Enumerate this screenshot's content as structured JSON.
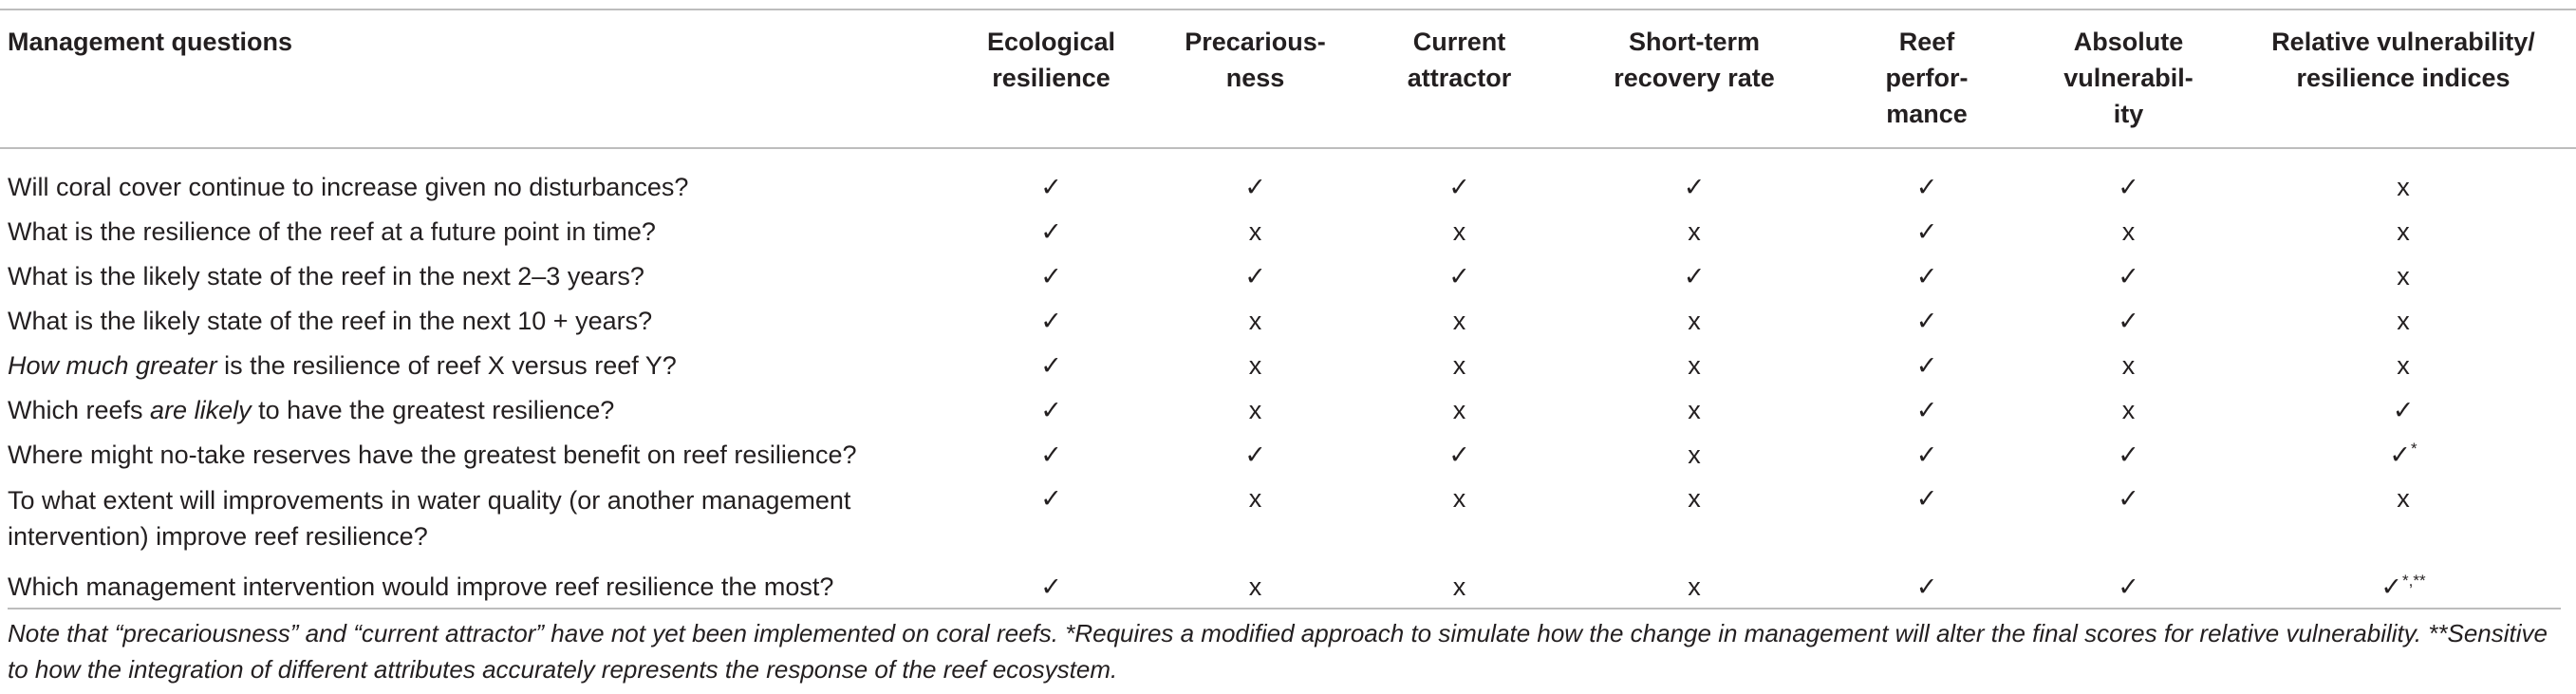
{
  "table": {
    "headers": [
      "Management questions",
      "Ecological resilience",
      "Precarious-ness",
      "Current attractor",
      "Short-term recovery rate",
      "Reef perfor-mance",
      "Absolute vulnerabil-ity",
      "Relative vulnerability/ resilience indices"
    ],
    "header_lines": [
      [
        "Management questions"
      ],
      [
        "Ecological",
        "resilience"
      ],
      [
        "Precarious-",
        "ness"
      ],
      [
        "Current",
        "attractor"
      ],
      [
        "Short-term",
        "recovery rate"
      ],
      [
        "Reef",
        "perfor-",
        "mance"
      ],
      [
        "Absolute",
        "vulnerabil-",
        "ity"
      ],
      [
        "Relative vulnerability/",
        "resilience indices"
      ]
    ],
    "rows": [
      {
        "question": "Will coral cover continue to increase given no disturbances?",
        "cells": [
          "✓",
          "✓",
          "✓",
          "✓",
          "✓",
          "✓",
          "x"
        ]
      },
      {
        "question": "What is the resilience of the reef at a future point in time?",
        "cells": [
          "✓",
          "x",
          "x",
          "x",
          "✓",
          "x",
          "x"
        ]
      },
      {
        "question": "What is the likely state of the reef in the next 2–3 years?",
        "cells": [
          "✓",
          "✓",
          "✓",
          "✓",
          "✓",
          "✓",
          "x"
        ]
      },
      {
        "question": "What is the likely state of the reef in the next 10 + years?",
        "cells": [
          "✓",
          "x",
          "x",
          "x",
          "✓",
          "✓",
          "x"
        ]
      },
      {
        "question_italic": "How much greater",
        "question": " is the resilience of reef X versus reef Y?",
        "cells": [
          "✓",
          "x",
          "x",
          "x",
          "✓",
          "x",
          "x"
        ]
      },
      {
        "question_pre": "Which reefs ",
        "question_italic": "are likely",
        "question": " to have the greatest resilience?",
        "cells": [
          "✓",
          "x",
          "x",
          "x",
          "✓",
          "x",
          "✓"
        ]
      },
      {
        "question": "Where might no-take reserves have the greatest benefit on reef resilience?",
        "cells": [
          "✓",
          "✓",
          "✓",
          "x",
          "✓",
          "✓",
          "✓"
        ],
        "last_sup": "*"
      },
      {
        "question_line1": "To what extent will improvements in water quality (or another management",
        "question_line2": "intervention) improve reef resilience?",
        "cells": [
          "✓",
          "x",
          "x",
          "x",
          "✓",
          "✓",
          "x"
        ]
      },
      {
        "question": "Which management intervention would improve reef resilience the most?",
        "cells": [
          "✓",
          "x",
          "x",
          "x",
          "✓",
          "✓",
          "✓"
        ],
        "last_sup": "*,**"
      }
    ]
  },
  "note": "Note that “precariousness” and “current attractor” have not yet been implemented on coral reefs. *Requires a modified approach to simulate how the change in management will alter the final scores for relative vulnerability. **Sensitive to how the integration of different attributes accurately represents the response of the reef ecosystem."
}
